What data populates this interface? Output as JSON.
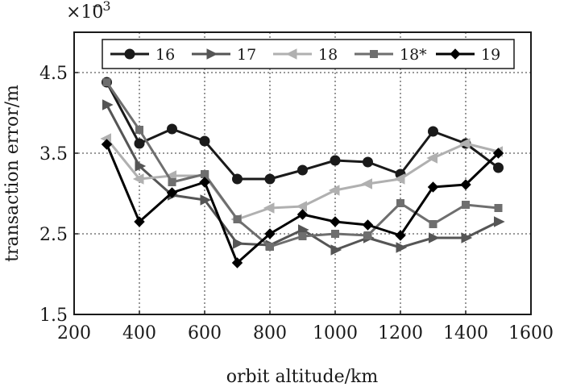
{
  "chart_data": {
    "type": "line",
    "xlabel": "orbit altitude/km",
    "ylabel": "transaction error/m",
    "yscale_base": "×10",
    "yscale_exp": "−3",
    "xlim": [
      200,
      1600
    ],
    "ylim": [
      1.5,
      5.0
    ],
    "xticks": [
      200,
      400,
      600,
      800,
      1000,
      1200,
      1400,
      1600
    ],
    "yticks": [
      1.5,
      2.5,
      3.5,
      4.5
    ],
    "xtick_labels": [
      "200",
      "400",
      "600",
      "800",
      "1000",
      "1200",
      "1400",
      "1600"
    ],
    "ytick_labels": [
      "1.5",
      "2.5",
      "3.5",
      "4.5"
    ],
    "grid": true,
    "legend_position": "top",
    "x": [
      300,
      400,
      500,
      600,
      700,
      800,
      900,
      1000,
      1100,
      1200,
      1300,
      1400,
      1500
    ],
    "series": [
      {
        "name": "16",
        "color": "#1a1a1a",
        "marker": "circle",
        "values": [
          4.38,
          3.62,
          3.8,
          3.65,
          3.18,
          3.18,
          3.29,
          3.41,
          3.39,
          3.24,
          3.77,
          3.62,
          3.32
        ]
      },
      {
        "name": "17",
        "color": "#555555",
        "marker": "triangle-right",
        "values": [
          4.1,
          3.34,
          2.98,
          2.92,
          2.38,
          2.36,
          2.55,
          2.3,
          2.45,
          2.33,
          2.45,
          2.45,
          2.65
        ]
      },
      {
        "name": "18",
        "color": "#b0b0b0",
        "marker": "triangle-left",
        "values": [
          3.68,
          3.18,
          3.22,
          3.22,
          2.68,
          2.82,
          2.84,
          3.04,
          3.12,
          3.18,
          3.44,
          3.62,
          3.52
        ]
      },
      {
        "name": "18*",
        "color": "#6e6e6e",
        "marker": "square",
        "values": [
          4.38,
          3.79,
          3.14,
          3.24,
          2.68,
          2.34,
          2.47,
          2.5,
          2.48,
          2.88,
          2.62,
          2.86,
          2.82
        ]
      },
      {
        "name": "19",
        "color": "#000000",
        "marker": "diamond",
        "values": [
          3.61,
          2.65,
          3.01,
          3.14,
          2.14,
          2.5,
          2.74,
          2.65,
          2.61,
          2.48,
          3.08,
          3.11,
          3.5
        ]
      }
    ]
  }
}
